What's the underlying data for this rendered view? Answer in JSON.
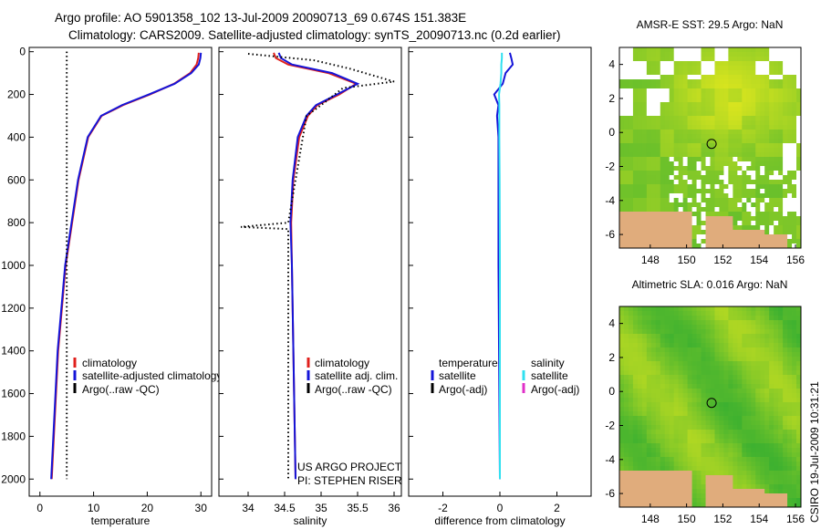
{
  "title_line1": "Argo profile: AO 5901358_102 13-Jul-2009 20090713_69 0.674S 151.383E",
  "title_line2": "Climatology: CARS2009. Satellite-adjusted climatology: synTS_20090713.nc (0.2d earlier)",
  "side_label": "CSIRO 19-Jul-2009 10:31:21",
  "project_line1": "US ARGO PROJECT",
  "project_line2": "PI: STEPHEN RISER",
  "colors": {
    "climatology": "#e0201c",
    "satellite": "#1414d8",
    "argo": "#000000",
    "sat_sal": "#30e0f0",
    "argo_adj_sal": "#e030c8",
    "land": "#e0ac7c",
    "seed": "#40a830"
  },
  "chart_data": [
    {
      "type": "line",
      "id": "temperature",
      "xlabel": "temperature",
      "ylabel": "",
      "xlim": [
        -2,
        32
      ],
      "ylim": [
        2080,
        -20
      ],
      "xticks": [
        "0",
        "10",
        "20",
        "30"
      ],
      "yticks": [
        "0",
        "200",
        "400",
        "600",
        "800",
        "1000",
        "1200",
        "1400",
        "1600",
        "1800",
        "2000"
      ],
      "legend": [
        "climatology",
        "satellite-adjusted climatology",
        "Argo(..raw -QC)"
      ],
      "series": [
        {
          "name": "climatology",
          "depth": [
            5,
            30,
            60,
            100,
            150,
            200,
            250,
            300,
            400,
            600,
            800,
            1000,
            1400,
            1800,
            2000
          ],
          "values": [
            29.6,
            29.5,
            29.2,
            28.0,
            25.0,
            20.5,
            15.5,
            11.5,
            9.0,
            7.2,
            6.0,
            4.8,
            3.4,
            2.6,
            2.2
          ]
        },
        {
          "name": "satellite-adjusted climatology",
          "depth": [
            5,
            30,
            60,
            100,
            150,
            200,
            250,
            300,
            400,
            600,
            800,
            1000,
            1400,
            1800,
            2000
          ],
          "values": [
            30.0,
            29.9,
            29.6,
            28.2,
            25.1,
            20.3,
            15.3,
            11.4,
            8.9,
            7.1,
            5.9,
            4.7,
            3.3,
            2.5,
            2.1
          ]
        },
        {
          "name": "Argo(..raw -QC)",
          "depth": [
            0,
            2000
          ],
          "values": [
            5.0,
            5.0
          ]
        }
      ]
    },
    {
      "type": "line",
      "id": "salinity",
      "xlabel": "salinity",
      "ylabel": "",
      "xlim": [
        33.6,
        36.1
      ],
      "ylim": [
        2080,
        -20
      ],
      "xticks": [
        "34",
        "34.5",
        "35",
        "35.5",
        "36"
      ],
      "legend": [
        "climatology",
        "satellite adj. clim.",
        "Argo(..raw -QC)"
      ],
      "series": [
        {
          "name": "climatology",
          "depth": [
            5,
            30,
            60,
            100,
            150,
            200,
            250,
            300,
            400,
            600,
            800,
            1000,
            1400,
            1800,
            2000
          ],
          "values": [
            34.35,
            34.38,
            34.55,
            35.1,
            35.48,
            35.25,
            34.95,
            34.82,
            34.7,
            34.62,
            34.59,
            34.6,
            34.62,
            34.64,
            34.65
          ]
        },
        {
          "name": "satellite adj. clim.",
          "depth": [
            5,
            30,
            60,
            100,
            150,
            200,
            250,
            300,
            400,
            600,
            800,
            1000,
            1400,
            1800,
            2000
          ],
          "values": [
            34.42,
            34.45,
            34.6,
            35.15,
            35.5,
            35.22,
            34.93,
            34.8,
            34.68,
            34.61,
            34.58,
            34.6,
            34.62,
            34.64,
            34.65
          ]
        },
        {
          "name": "Argo(..raw -QC)",
          "depth": [
            10,
            40,
            80,
            110,
            140,
            170,
            250,
            300,
            800,
            820,
            830,
            2000
          ],
          "values": [
            34.0,
            34.9,
            35.4,
            35.7,
            36.0,
            35.3,
            35.0,
            34.8,
            34.55,
            33.9,
            34.55,
            34.55
          ]
        }
      ]
    },
    {
      "type": "line",
      "id": "difference",
      "xlabel": "difference from climatology",
      "ylabel": "",
      "xlim": [
        -3.2,
        3.2
      ],
      "ylim": [
        2080,
        -20
      ],
      "xticks": [
        "-2",
        "0",
        "2"
      ],
      "legend": [
        "temperature",
        "satellite",
        "Argo(-adj)",
        "salinity",
        "satellite",
        "Argo(-adj)"
      ],
      "series": [
        {
          "name": "temperature satellite",
          "depth": [
            5,
            30,
            60,
            100,
            150,
            200,
            250,
            300,
            400,
            600,
            1000,
            1400,
            2000
          ],
          "values": [
            0.35,
            0.4,
            0.45,
            0.2,
            0.1,
            -0.2,
            -0.05,
            -0.1,
            -0.05,
            -0.05,
            -0.05,
            -0.03,
            0.0
          ]
        },
        {
          "name": "salinity satellite",
          "depth": [
            5,
            30,
            60,
            100,
            150,
            200,
            250,
            300,
            400,
            600,
            1000,
            1400,
            2000
          ],
          "values": [
            0.07,
            0.07,
            0.05,
            0.05,
            0.02,
            -0.03,
            -0.02,
            -0.02,
            -0.02,
            -0.01,
            0.0,
            0.0,
            0.0
          ]
        }
      ]
    },
    {
      "type": "heatmap",
      "id": "sst_map",
      "title": "AMSR-E SST: 29.5 Argo: NaN",
      "xlim": [
        146.3,
        156.3
      ],
      "ylim": [
        -6.8,
        5.0
      ],
      "xticks": [
        "148",
        "150",
        "152",
        "154",
        "156"
      ],
      "yticks": [
        "4",
        "2",
        "0",
        "-2",
        "-4",
        "-6"
      ],
      "marker": {
        "lon": 151.38,
        "lat": -0.67
      }
    },
    {
      "type": "heatmap",
      "id": "sla_map",
      "title": "Altimetric SLA: 0.016 Argo: NaN",
      "xlim": [
        146.3,
        156.3
      ],
      "ylim": [
        -6.8,
        5.0
      ],
      "xticks": [
        "148",
        "150",
        "152",
        "154",
        "156"
      ],
      "yticks": [
        "4",
        "2",
        "0",
        "-2",
        "-4",
        "-6"
      ],
      "marker": {
        "lon": 151.38,
        "lat": -0.67
      }
    }
  ]
}
